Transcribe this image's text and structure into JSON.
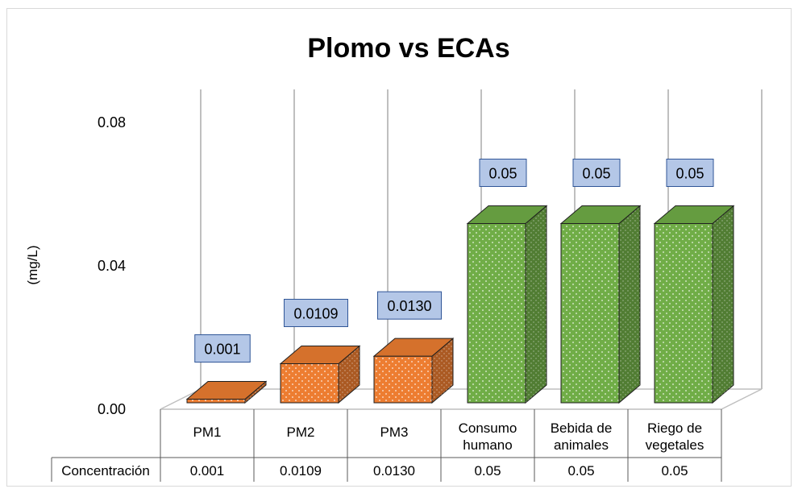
{
  "chart_data": {
    "type": "bar",
    "title": "Plomo vs ECAs",
    "ylabel": "(mg/L)",
    "xlabel": "",
    "ylim": [
      0,
      0.09
    ],
    "yticks": [
      "0.00",
      "0.04",
      "0.08"
    ],
    "yticks_values": [
      0,
      0.04,
      0.08
    ],
    "categories": [
      "PM1",
      "PM2",
      "PM3",
      "Consumo humano",
      "Bebida de animales",
      "Riego de vegetales"
    ],
    "category_lines": [
      [
        "PM1"
      ],
      [
        "PM2"
      ],
      [
        "PM3"
      ],
      [
        "Consumo",
        "humano"
      ],
      [
        "Bebida de",
        "animales"
      ],
      [
        "Riego de",
        "vegetales"
      ]
    ],
    "series": [
      {
        "name": "Concentración",
        "values": [
          0.001,
          0.0109,
          0.013,
          0.05,
          0.05,
          0.05
        ],
        "data_labels": [
          "0.001",
          "0.0109",
          "0.0130",
          "0.05",
          "0.05",
          "0.05"
        ],
        "table_values": [
          "0.001",
          "0.0109",
          "0.0130",
          "0.05",
          "0.05",
          "0.05"
        ]
      }
    ],
    "bar_colors": [
      "#ed7d31",
      "#ed7d31",
      "#ed7d31",
      "#70ad47",
      "#70ad47",
      "#70ad47"
    ],
    "data_table": true,
    "grid": false,
    "chart_style": "3d-column"
  }
}
